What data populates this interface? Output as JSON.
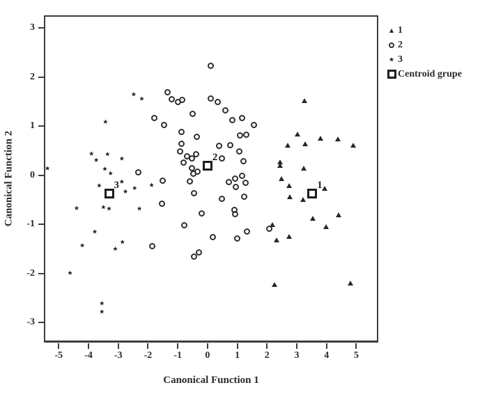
{
  "figure": {
    "background": "#ffffff",
    "ink_color": "#2b2b2b",
    "frame_color": "#3d3d3d"
  },
  "chart_data": {
    "type": "scatter",
    "title": "",
    "xlabel": "Canonical Function 1",
    "ylabel": "Canonical Function 2",
    "xlim": [
      -5.5,
      5.74
    ],
    "ylim": [
      -3.41,
      3.26
    ],
    "grid": false,
    "legend_position": "top-right-outside",
    "x_ticks": [
      -5,
      -4,
      -3,
      -2,
      -1,
      0,
      1,
      2,
      3,
      4,
      5
    ],
    "x_tick_labels": [
      "-5",
      "-4",
      "-3",
      "-2",
      "-1",
      "0",
      "1",
      "2",
      "3",
      "4",
      "5"
    ],
    "y_ticks": [
      3,
      2,
      1,
      0,
      -1,
      -2,
      -3
    ],
    "y_tick_labels": [
      "3",
      "2",
      "1",
      "0",
      "-1",
      "-2",
      "-3"
    ],
    "series": [
      {
        "name": "1",
        "marker": "triangle",
        "points": [
          [
            3.26,
            1.52
          ],
          [
            3.02,
            0.84
          ],
          [
            3.79,
            0.75
          ],
          [
            4.38,
            0.74
          ],
          [
            4.9,
            0.6
          ],
          [
            2.69,
            0.61
          ],
          [
            3.29,
            0.64
          ],
          [
            2.43,
            0.27
          ],
          [
            2.43,
            0.2
          ],
          [
            3.24,
            0.14
          ],
          [
            2.48,
            -0.07
          ],
          [
            2.74,
            -0.21
          ],
          [
            2.76,
            -0.44
          ],
          [
            3.21,
            -0.5
          ],
          [
            3.93,
            -0.28
          ],
          [
            3.55,
            -0.88
          ],
          [
            3.98,
            -1.06
          ],
          [
            4.4,
            -0.82
          ],
          [
            2.31,
            -1.32
          ],
          [
            2.74,
            -1.25
          ],
          [
            2.19,
            -1.01
          ],
          [
            2.26,
            -2.23
          ],
          [
            4.81,
            -2.21
          ]
        ]
      },
      {
        "name": "2",
        "marker": "circle",
        "points": [
          [
            0.1,
            2.23
          ],
          [
            -1.35,
            1.69
          ],
          [
            -1.2,
            1.55
          ],
          [
            -1.0,
            1.5
          ],
          [
            -0.85,
            1.53
          ],
          [
            0.1,
            1.57
          ],
          [
            0.35,
            1.49
          ],
          [
            0.6,
            1.32
          ],
          [
            -0.5,
            1.25
          ],
          [
            0.84,
            1.13
          ],
          [
            1.17,
            1.16
          ],
          [
            -1.8,
            1.16
          ],
          [
            -1.45,
            1.02
          ],
          [
            1.57,
            1.02
          ],
          [
            -0.87,
            0.88
          ],
          [
            -0.37,
            0.78
          ],
          [
            1.1,
            0.81
          ],
          [
            1.31,
            0.82
          ],
          [
            -0.87,
            0.64
          ],
          [
            0.38,
            0.6
          ],
          [
            0.77,
            0.62
          ],
          [
            -0.92,
            0.48
          ],
          [
            -0.39,
            0.43
          ],
          [
            1.06,
            0.48
          ],
          [
            -0.68,
            0.38
          ],
          [
            -0.53,
            0.35
          ],
          [
            -0.8,
            0.26
          ],
          [
            0.48,
            0.35
          ],
          [
            1.2,
            0.28
          ],
          [
            -2.33,
            0.06
          ],
          [
            -0.53,
            0.14
          ],
          [
            -0.34,
            0.07
          ],
          [
            -0.48,
            0.03
          ],
          [
            -1.5,
            -0.11
          ],
          [
            -0.6,
            -0.13
          ],
          [
            0.72,
            -0.14
          ],
          [
            0.93,
            -0.07
          ],
          [
            1.17,
            -0.01
          ],
          [
            1.29,
            -0.16
          ],
          [
            0.95,
            -0.24
          ],
          [
            -0.45,
            -0.37
          ],
          [
            -1.52,
            -0.58
          ],
          [
            0.48,
            -0.48
          ],
          [
            1.24,
            -0.44
          ],
          [
            0.91,
            -0.7
          ],
          [
            0.93,
            -0.79
          ],
          [
            -0.2,
            -0.78
          ],
          [
            -0.77,
            -1.02
          ],
          [
            0.17,
            -1.26
          ],
          [
            1.0,
            -1.29
          ],
          [
            1.33,
            -1.15
          ],
          [
            2.07,
            -1.09
          ],
          [
            -0.29,
            -1.57
          ],
          [
            -0.45,
            -1.66
          ],
          [
            -1.86,
            -1.45
          ]
        ]
      },
      {
        "name": "3",
        "marker": "star",
        "points": [
          [
            -5.38,
            0.14
          ],
          [
            -2.48,
            1.65
          ],
          [
            -2.21,
            1.56
          ],
          [
            -3.43,
            1.09
          ],
          [
            -3.9,
            0.44
          ],
          [
            -3.74,
            0.31
          ],
          [
            -3.36,
            0.43
          ],
          [
            -2.88,
            0.34
          ],
          [
            -3.45,
            0.13
          ],
          [
            -3.26,
            0.04
          ],
          [
            -3.64,
            -0.21
          ],
          [
            -2.88,
            -0.13
          ],
          [
            -2.45,
            -0.26
          ],
          [
            -1.88,
            -0.2
          ],
          [
            -2.76,
            -0.33
          ],
          [
            -4.4,
            -0.67
          ],
          [
            -3.5,
            -0.65
          ],
          [
            -3.31,
            -0.68
          ],
          [
            -2.29,
            -0.68
          ],
          [
            -3.79,
            -1.15
          ],
          [
            -4.21,
            -1.43
          ],
          [
            -2.86,
            -1.36
          ],
          [
            -3.1,
            -1.5
          ],
          [
            -4.62,
            -1.99
          ],
          [
            -3.55,
            -2.61
          ],
          [
            -3.55,
            -2.78
          ]
        ]
      },
      {
        "name": "Centroid grupe",
        "marker": "square",
        "points": [
          [
            3.52,
            -0.37
          ],
          [
            0.0,
            0.2
          ],
          [
            -3.31,
            -0.37
          ]
        ],
        "point_labels": [
          "1",
          "2",
          "3"
        ]
      }
    ]
  },
  "legend": {
    "items": [
      {
        "label": "1",
        "marker": "triangle"
      },
      {
        "label": "2",
        "marker": "circle"
      },
      {
        "label": "3",
        "marker": "star"
      },
      {
        "label": "Centroid grupe",
        "marker": "square"
      }
    ]
  }
}
